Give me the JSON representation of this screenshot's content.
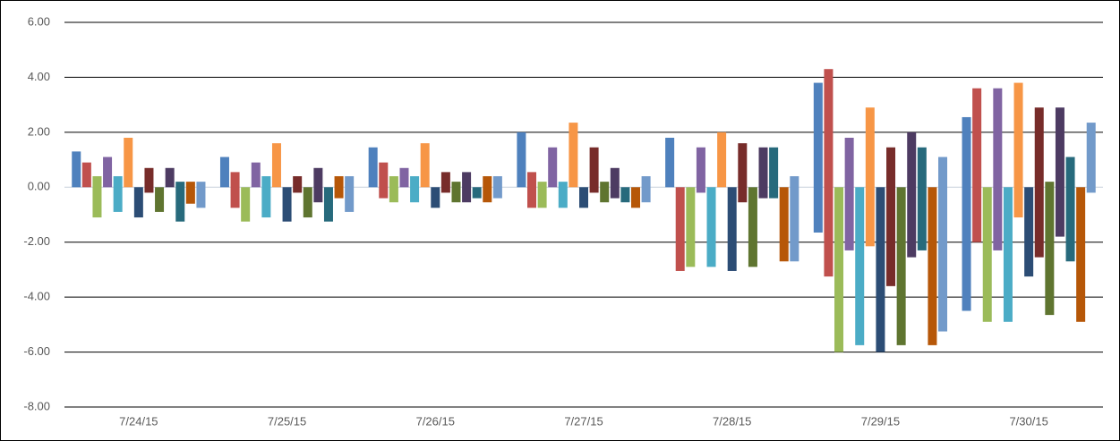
{
  "chart_data": {
    "type": "floating-bar",
    "categories": [
      "7/24/15",
      "7/25/15",
      "7/26/15",
      "7/27/15",
      "7/28/15",
      "7/29/15",
      "7/30/15"
    ],
    "ylim": [
      -8,
      6
    ],
    "yticks": [
      {
        "value": -8,
        "label": "-8.00"
      },
      {
        "value": -6,
        "label": "-6.00"
      },
      {
        "value": -4,
        "label": "-4.00"
      },
      {
        "value": -2,
        "label": "-2.00"
      },
      {
        "value": 0,
        "label": "0.00"
      },
      {
        "value": 2,
        "label": "2.00"
      },
      {
        "value": 4,
        "label": "4.00"
      },
      {
        "value": 6,
        "label": "6.00"
      }
    ],
    "grid": true,
    "series": [
      {
        "color": "#4f81bd",
        "low": [
          0,
          0,
          0,
          0,
          0,
          -1.65,
          -4.5
        ],
        "high": [
          1.3,
          1.1,
          1.45,
          2.0,
          1.8,
          3.8,
          2.55
        ]
      },
      {
        "color": "#c0504d",
        "low": [
          0,
          -0.75,
          -0.4,
          -0.75,
          -3.05,
          -3.25,
          -2.0
        ],
        "high": [
          0.9,
          0.55,
          0.9,
          0.55,
          0,
          4.3,
          3.6
        ]
      },
      {
        "color": "#9bbb59",
        "low": [
          -1.1,
          -1.25,
          -0.55,
          -0.75,
          -2.9,
          -6.0,
          -4.9
        ],
        "high": [
          0.4,
          0,
          0.4,
          0.2,
          0,
          0,
          0
        ]
      },
      {
        "color": "#8064a2",
        "low": [
          0,
          0,
          0,
          0,
          -0.2,
          -2.3,
          -2.3
        ],
        "high": [
          1.1,
          0.9,
          0.7,
          1.45,
          1.45,
          1.8,
          3.6
        ]
      },
      {
        "color": "#4bacc6",
        "low": [
          -0.9,
          -1.1,
          -0.55,
          -0.75,
          -2.9,
          -5.75,
          -4.9
        ],
        "high": [
          0.4,
          0.4,
          0.4,
          0.2,
          0,
          0,
          0
        ]
      },
      {
        "color": "#f79646",
        "low": [
          0,
          0,
          0,
          0,
          0,
          -2.15,
          -1.1
        ],
        "high": [
          1.8,
          1.6,
          1.6,
          2.35,
          2.0,
          2.9,
          3.8
        ]
      },
      {
        "color": "#2c4d75",
        "low": [
          -1.1,
          -1.25,
          -0.75,
          -0.75,
          -3.05,
          -6.0,
          -3.25
        ],
        "high": [
          0,
          0,
          0,
          0,
          0,
          0,
          0
        ]
      },
      {
        "color": "#772c2a",
        "low": [
          -0.2,
          -0.2,
          -0.2,
          -0.2,
          -0.55,
          -3.6,
          -2.55
        ],
        "high": [
          0.7,
          0.4,
          0.55,
          1.45,
          1.6,
          1.45,
          2.9
        ]
      },
      {
        "color": "#5f7530",
        "low": [
          -0.9,
          -1.1,
          -0.55,
          -0.55,
          -2.9,
          -5.75,
          -4.65
        ],
        "high": [
          0,
          0,
          0.2,
          0.2,
          0,
          0,
          0.2
        ]
      },
      {
        "color": "#4d3b62",
        "low": [
          0,
          -0.55,
          -0.55,
          -0.4,
          -0.4,
          -2.55,
          -1.8
        ],
        "high": [
          0.7,
          0.7,
          0.55,
          0.7,
          1.45,
          2.0,
          2.9
        ]
      },
      {
        "color": "#276a7c",
        "low": [
          -1.25,
          -1.25,
          -0.4,
          -0.55,
          -0.4,
          -2.3,
          -2.7
        ],
        "high": [
          0.2,
          0,
          0,
          0,
          1.45,
          1.45,
          1.1
        ]
      },
      {
        "color": "#b65708",
        "low": [
          -0.6,
          -0.4,
          -0.55,
          -0.75,
          -2.7,
          -5.75,
          -4.9
        ],
        "high": [
          0.2,
          0.4,
          0.4,
          0,
          0,
          0,
          0
        ]
      },
      {
        "color": "#729aca",
        "low": [
          -0.75,
          -0.9,
          -0.4,
          -0.55,
          -2.7,
          -5.25,
          -0.2
        ],
        "high": [
          0.2,
          0.4,
          0.4,
          0.4,
          0.4,
          1.1,
          2.35
        ]
      }
    ]
  }
}
